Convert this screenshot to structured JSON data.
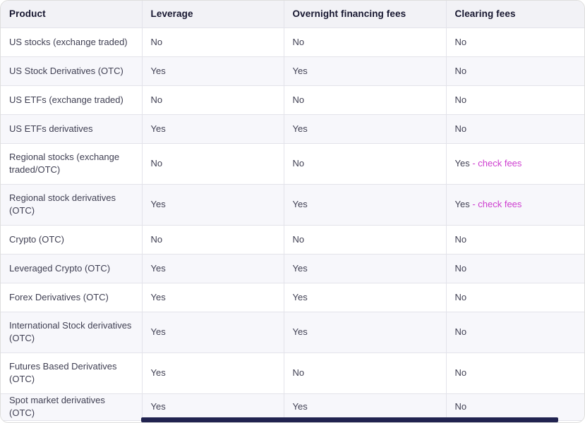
{
  "colors": {
    "header_bg": "#f2f2f6",
    "row_alt_bg": "#f7f7fb",
    "border": "#e3e3ea",
    "header_text": "#16162f",
    "cell_text": "#3f3f52",
    "link": "#ce3fd0",
    "scrollbar_thumb": "#212350"
  },
  "table": {
    "columns": [
      {
        "id": "product",
        "label": "Product"
      },
      {
        "id": "leverage",
        "label": "Leverage"
      },
      {
        "id": "overnight",
        "label": "Overnight financing fees"
      },
      {
        "id": "clearing",
        "label": "Clearing fees"
      }
    ],
    "rows": [
      {
        "product": "US stocks (exchange traded)",
        "leverage": "No",
        "overnight": "No",
        "clearing": "No"
      },
      {
        "product": "US Stock Derivatives (OTC)",
        "leverage": "Yes",
        "overnight": "Yes",
        "clearing": "No"
      },
      {
        "product": "US ETFs (exchange traded)",
        "leverage": "No",
        "overnight": "No",
        "clearing": "No"
      },
      {
        "product": "US ETFs derivatives",
        "leverage": "Yes",
        "overnight": "Yes",
        "clearing": "No"
      },
      {
        "product": "Regional stocks (exchange traded/OTC)",
        "leverage": "No",
        "overnight": "No",
        "clearing": "Yes ",
        "clearing_link": "- check fees"
      },
      {
        "product": "Regional stock derivatives (OTC)",
        "leverage": "Yes",
        "overnight": "Yes",
        "clearing": "Yes ",
        "clearing_link": "- check fees"
      },
      {
        "product": "Crypto (OTC)",
        "leverage": "No",
        "overnight": "No",
        "clearing": "No"
      },
      {
        "product": "Leveraged Crypto (OTC)",
        "leverage": "Yes",
        "overnight": "Yes",
        "clearing": "No"
      },
      {
        "product": "Forex Derivatives (OTC)",
        "leverage": "Yes",
        "overnight": "Yes",
        "clearing": "No"
      },
      {
        "product": "International Stock derivatives (OTC)",
        "leverage": "Yes",
        "overnight": "Yes",
        "clearing": "No"
      },
      {
        "product": "Futures Based Derivatives (OTC)",
        "leverage": "Yes",
        "overnight": "No",
        "clearing": "No"
      },
      {
        "product": "Spot market derivatives (OTC)",
        "leverage": "Yes",
        "overnight": "Yes",
        "clearing": "No"
      }
    ]
  }
}
